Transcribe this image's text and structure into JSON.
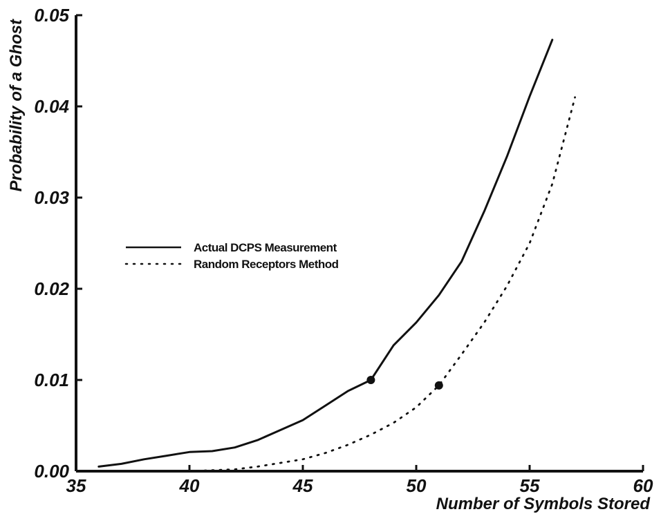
{
  "chart_data": {
    "type": "line",
    "xlabel": "Number of Symbols Stored",
    "ylabel": "Probability of a Ghost",
    "xlim": [
      35,
      60
    ],
    "ylim": [
      0,
      0.05
    ],
    "xticks": [
      35,
      40,
      45,
      50,
      55,
      60
    ],
    "xtick_labels": [
      "35",
      "40",
      "45",
      "50",
      "55",
      "60"
    ],
    "yticks": [
      0,
      0.01,
      0.02,
      0.03,
      0.04,
      0.05
    ],
    "ytick_labels": [
      "0.00",
      "0.01",
      "0.02",
      "0.03",
      "0.04",
      "0.05"
    ],
    "grid": false,
    "legend_position": "center-left",
    "series": [
      {
        "name": "Actual DCPS Measurement",
        "style": "solid",
        "color": "#111111",
        "x": [
          36,
          37,
          38,
          39,
          40,
          41,
          42,
          43,
          44,
          45,
          46,
          47,
          48,
          49,
          50,
          51,
          52,
          53,
          54,
          55,
          56
        ],
        "y": [
          0.0005,
          0.0008,
          0.0013,
          0.0017,
          0.0021,
          0.0022,
          0.0026,
          0.0034,
          0.0045,
          0.0056,
          0.0072,
          0.0088,
          0.01,
          0.0138,
          0.0163,
          0.0193,
          0.023,
          0.0285,
          0.0345,
          0.0411,
          0.0473
        ],
        "markers": [
          {
            "x": 48,
            "y": 0.01
          }
        ]
      },
      {
        "name": "Random Receptors Method",
        "style": "dotted",
        "color": "#111111",
        "x": [
          40,
          41,
          42,
          43,
          44,
          45,
          46,
          47,
          48,
          49,
          50,
          51,
          52,
          53,
          54,
          55,
          56,
          57
        ],
        "y": [
          0.0,
          0.0001,
          0.0002,
          0.0005,
          0.0009,
          0.0013,
          0.002,
          0.0029,
          0.004,
          0.0053,
          0.007,
          0.0094,
          0.0128,
          0.0163,
          0.0203,
          0.025,
          0.0315,
          0.041
        ],
        "markers": [
          {
            "x": 51,
            "y": 0.0094
          }
        ]
      }
    ]
  }
}
